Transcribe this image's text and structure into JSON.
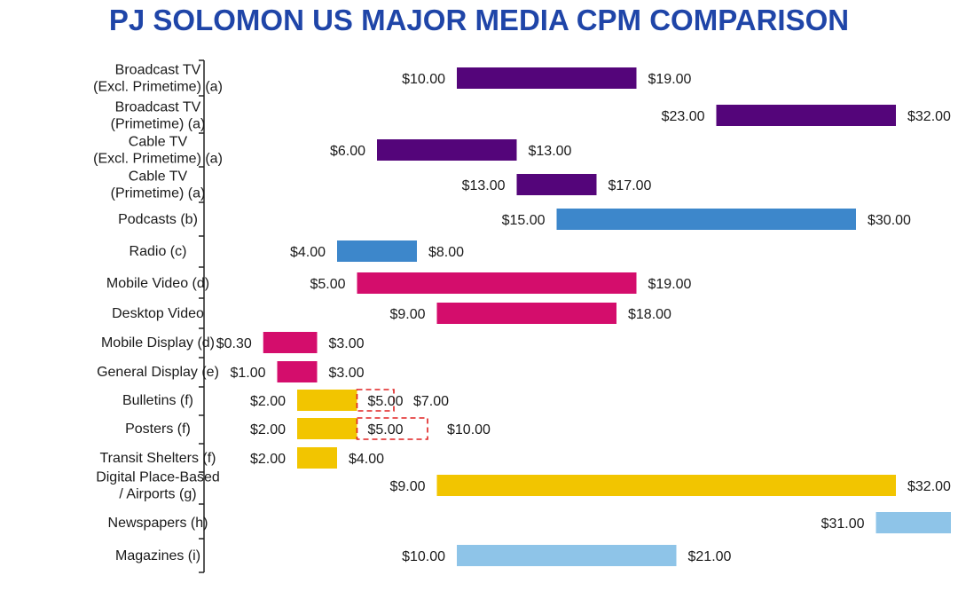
{
  "chart_data": {
    "type": "bar",
    "title": "PJ SOLOMON US MAJOR MEDIA CPM COMPARISON",
    "xlabel": "",
    "ylabel": "",
    "grid": false,
    "legend": "none",
    "xlim": [
      0,
      33
    ],
    "categories": [
      "Broadcast TV\n(Excl. Primetime) (a)",
      "Broadcast TV\n(Primetime) (a)",
      "Cable TV\n(Excl. Primetime) (a)",
      "Cable TV\n(Primetime) (a)",
      "Podcasts (b)",
      "Radio (c)",
      "Mobile Video (d)",
      "Desktop Video",
      "Mobile Display (d)",
      "General Display (e)",
      "Bulletins (f)",
      "Posters (f)",
      "Transit Shelters (f)",
      "Digital Place-Based\n/ Airports (g)",
      "Newspapers (h)",
      "Magazines (i)"
    ],
    "ranges": [
      {
        "low": 10,
        "high": 19,
        "low_label": "$10.00",
        "high_label": "$19.00",
        "color": "#54057a"
      },
      {
        "low": 23,
        "high": 32,
        "low_label": "$23.00",
        "high_label": "$32.00",
        "color": "#54057a"
      },
      {
        "low": 6,
        "high": 13,
        "low_label": "$6.00",
        "high_label": "$13.00",
        "color": "#54057a"
      },
      {
        "low": 13,
        "high": 17,
        "low_label": "$13.00",
        "high_label": "$17.00",
        "color": "#54057a"
      },
      {
        "low": 15,
        "high": 30,
        "low_label": "$15.00",
        "high_label": "$30.00",
        "color": "#3d87cb"
      },
      {
        "low": 4,
        "high": 8,
        "low_label": "$4.00",
        "high_label": "$8.00",
        "color": "#3d87cb"
      },
      {
        "low": 5,
        "high": 19,
        "low_label": "$5.00",
        "high_label": "$19.00",
        "color": "#d40d6c"
      },
      {
        "low": 9,
        "high": 18,
        "low_label": "$9.00",
        "high_label": "$18.00",
        "color": "#d40d6c"
      },
      {
        "low": 0.3,
        "high": 3,
        "low_label": "$0.30",
        "high_label": "$3.00",
        "color": "#d40d6c"
      },
      {
        "low": 1,
        "high": 3,
        "low_label": "$1.00",
        "high_label": "$3.00",
        "color": "#d40d6c"
      },
      {
        "low": 2,
        "high": 7,
        "low_label": "$2.00",
        "mid_label": "$5.00",
        "high_label": "$7.00",
        "solid_high": 5,
        "color": "#f2c500",
        "dashed_color": "#e02020"
      },
      {
        "low": 2,
        "high": 10,
        "low_label": "$2.00",
        "mid_label": "$5.00",
        "high_label": "$10.00",
        "solid_high": 5,
        "color": "#f2c500",
        "dashed_color": "#e02020"
      },
      {
        "low": 2,
        "high": 4,
        "low_label": "$2.00",
        "high_label": "$4.00",
        "color": "#f2c500"
      },
      {
        "low": 9,
        "high": 32,
        "low_label": "$9.00",
        "high_label": "$32.00",
        "color": "#f2c500"
      },
      {
        "low": 31,
        "high": 40,
        "low_label": "$31.00",
        "high_label": "",
        "color": "#8ec4e8"
      },
      {
        "low": 10,
        "high": 21,
        "low_label": "$10.00",
        "high_label": "$21.00",
        "color": "#8ec4e8"
      }
    ]
  }
}
